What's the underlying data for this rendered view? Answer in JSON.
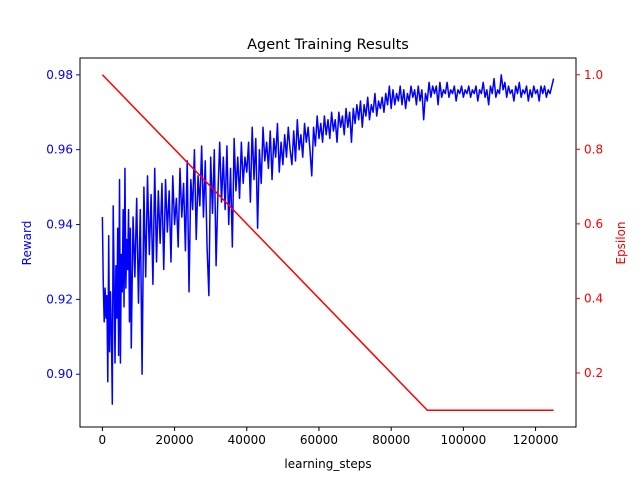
{
  "chart_data": {
    "type": "line",
    "title": "Agent Training Results",
    "xlabel": "learning_steps",
    "ylabel_left": "Reward",
    "ylabel_right": "Epsilon",
    "xlim": [
      -6200,
      131200
    ],
    "ylim_left": [
      0.8859,
      0.9845
    ],
    "ylim_right": [
      0.055,
      1.045
    ],
    "x_ticks": [
      0,
      20000,
      40000,
      60000,
      80000,
      100000,
      120000
    ],
    "y_ticks_left": [
      0.9,
      0.92,
      0.94,
      0.96,
      0.98
    ],
    "y_ticks_right": [
      0.2,
      0.4,
      0.6,
      0.8,
      1.0
    ],
    "grid": false,
    "colors": {
      "reward": "#0000ff",
      "epsilon": "#ff0000",
      "axis": "#000000"
    },
    "series": [
      {
        "name": "Reward",
        "axis": "left",
        "color": "#0000ff",
        "points": [
          [
            0,
            0.942
          ],
          [
            250,
            0.924
          ],
          [
            500,
            0.914
          ],
          [
            750,
            0.923
          ],
          [
            1000,
            0.915
          ],
          [
            1250,
            0.921
          ],
          [
            1500,
            0.898
          ],
          [
            1750,
            0.937
          ],
          [
            2000,
            0.906
          ],
          [
            2250,
            0.922
          ],
          [
            2500,
            0.911
          ],
          [
            2750,
            0.892
          ],
          [
            3000,
            0.945
          ],
          [
            3250,
            0.925
          ],
          [
            3500,
            0.903
          ],
          [
            3750,
            0.929
          ],
          [
            4000,
            0.915
          ],
          [
            4250,
            0.939
          ],
          [
            4500,
            0.905
          ],
          [
            4750,
            0.952
          ],
          [
            5000,
            0.903
          ],
          [
            5250,
            0.932
          ],
          [
            5500,
            0.922
          ],
          [
            5750,
            0.944
          ],
          [
            6000,
            0.918
          ],
          [
            6250,
            0.955
          ],
          [
            6500,
            0.923
          ],
          [
            6750,
            0.936
          ],
          [
            7000,
            0.928
          ],
          [
            7250,
            0.944
          ],
          [
            7500,
            0.914
          ],
          [
            7750,
            0.939
          ],
          [
            8000,
            0.907
          ],
          [
            8500,
            0.942
          ],
          [
            9000,
            0.926
          ],
          [
            9500,
            0.947
          ],
          [
            10000,
            0.919
          ],
          [
            10500,
            0.944
          ],
          [
            11000,
            0.9
          ],
          [
            11500,
            0.95
          ],
          [
            12000,
            0.926
          ],
          [
            12500,
            0.953
          ],
          [
            13000,
            0.932
          ],
          [
            13500,
            0.948
          ],
          [
            14000,
            0.924
          ],
          [
            14500,
            0.955
          ],
          [
            15000,
            0.93
          ],
          [
            15500,
            0.949
          ],
          [
            16000,
            0.935
          ],
          [
            16500,
            0.951
          ],
          [
            17000,
            0.928
          ],
          [
            17500,
            0.952
          ],
          [
            18000,
            0.938
          ],
          [
            18500,
            0.949
          ],
          [
            19000,
            0.93
          ],
          [
            19500,
            0.953
          ],
          [
            20000,
            0.94
          ],
          [
            20500,
            0.947
          ],
          [
            21000,
            0.934
          ],
          [
            21500,
            0.955
          ],
          [
            22000,
            0.942
          ],
          [
            22500,
            0.951
          ],
          [
            23000,
            0.933
          ],
          [
            23500,
            0.957
          ],
          [
            24000,
            0.922
          ],
          [
            24500,
            0.952
          ],
          [
            25000,
            0.944
          ],
          [
            25500,
            0.96
          ],
          [
            26000,
            0.936
          ],
          [
            26500,
            0.953
          ],
          [
            27000,
            0.945
          ],
          [
            27500,
            0.961
          ],
          [
            28000,
            0.942
          ],
          [
            28500,
            0.957
          ],
          [
            29000,
            0.934
          ],
          [
            29500,
            0.921
          ],
          [
            30000,
            0.958
          ],
          [
            30500,
            0.943
          ],
          [
            31000,
            0.96
          ],
          [
            31500,
            0.929
          ],
          [
            32000,
            0.948
          ],
          [
            32500,
            0.962
          ],
          [
            33000,
            0.946
          ],
          [
            33500,
            0.958
          ],
          [
            34000,
            0.944
          ],
          [
            34500,
            0.961
          ],
          [
            35000,
            0.94
          ],
          [
            35500,
            0.955
          ],
          [
            36000,
            0.934
          ],
          [
            36500,
            0.963
          ],
          [
            37000,
            0.949
          ],
          [
            37500,
            0.958
          ],
          [
            38000,
            0.947
          ],
          [
            38500,
            0.962
          ],
          [
            39000,
            0.951
          ],
          [
            39500,
            0.958
          ],
          [
            40000,
            0.954
          ],
          [
            40500,
            0.962
          ],
          [
            41000,
            0.946
          ],
          [
            41500,
            0.966
          ],
          [
            42000,
            0.952
          ],
          [
            42500,
            0.963
          ],
          [
            43000,
            0.939
          ],
          [
            43500,
            0.96
          ],
          [
            44000,
            0.951
          ],
          [
            44500,
            0.966
          ],
          [
            45000,
            0.957
          ],
          [
            45500,
            0.962
          ],
          [
            46000,
            0.955
          ],
          [
            46500,
            0.965
          ],
          [
            47000,
            0.952
          ],
          [
            47500,
            0.963
          ],
          [
            48000,
            0.958
          ],
          [
            48500,
            0.967
          ],
          [
            49000,
            0.954
          ],
          [
            49500,
            0.962
          ],
          [
            50000,
            0.956
          ],
          [
            50500,
            0.964
          ],
          [
            51000,
            0.958
          ],
          [
            51500,
            0.966
          ],
          [
            52000,
            0.96
          ],
          [
            52500,
            0.956
          ],
          [
            53000,
            0.965
          ],
          [
            53500,
            0.957
          ],
          [
            54000,
            0.968
          ],
          [
            54500,
            0.96
          ],
          [
            55000,
            0.964
          ],
          [
            55500,
            0.958
          ],
          [
            56000,
            0.967
          ],
          [
            56500,
            0.962
          ],
          [
            57000,
            0.966
          ],
          [
            57500,
            0.96
          ],
          [
            58000,
            0.953
          ],
          [
            58500,
            0.966
          ],
          [
            59000,
            0.961
          ],
          [
            59500,
            0.969
          ],
          [
            60000,
            0.963
          ],
          [
            60500,
            0.967
          ],
          [
            61000,
            0.962
          ],
          [
            61500,
            0.969
          ],
          [
            62000,
            0.964
          ],
          [
            62500,
            0.968
          ],
          [
            63000,
            0.963
          ],
          [
            63500,
            0.97
          ],
          [
            64000,
            0.965
          ],
          [
            64500,
            0.968
          ],
          [
            65000,
            0.962
          ],
          [
            65500,
            0.97
          ],
          [
            66000,
            0.966
          ],
          [
            66500,
            0.969
          ],
          [
            67000,
            0.964
          ],
          [
            67500,
            0.971
          ],
          [
            68000,
            0.966
          ],
          [
            68500,
            0.97
          ],
          [
            69000,
            0.962
          ],
          [
            69500,
            0.971
          ],
          [
            70000,
            0.967
          ],
          [
            70500,
            0.972
          ],
          [
            71000,
            0.968
          ],
          [
            71500,
            0.973
          ],
          [
            72000,
            0.966
          ],
          [
            72500,
            0.972
          ],
          [
            73000,
            0.969
          ],
          [
            73500,
            0.974
          ],
          [
            74000,
            0.968
          ],
          [
            74500,
            0.972
          ],
          [
            75000,
            0.97
          ],
          [
            75500,
            0.975
          ],
          [
            76000,
            0.969
          ],
          [
            76500,
            0.973
          ],
          [
            77000,
            0.971
          ],
          [
            77500,
            0.974
          ],
          [
            78000,
            0.97
          ],
          [
            78500,
            0.975
          ],
          [
            79000,
            0.972
          ],
          [
            79500,
            0.977
          ],
          [
            80000,
            0.971
          ],
          [
            80500,
            0.976
          ],
          [
            81000,
            0.972
          ],
          [
            81500,
            0.975
          ],
          [
            82000,
            0.973
          ],
          [
            82500,
            0.977
          ],
          [
            83000,
            0.972
          ],
          [
            83500,
            0.976
          ],
          [
            84000,
            0.971
          ],
          [
            84500,
            0.975
          ],
          [
            85000,
            0.973
          ],
          [
            85500,
            0.977
          ],
          [
            86000,
            0.974
          ],
          [
            86500,
            0.976
          ],
          [
            87000,
            0.972
          ],
          [
            87500,
            0.977
          ],
          [
            88000,
            0.973
          ],
          [
            88500,
            0.976
          ],
          [
            89000,
            0.968
          ],
          [
            89500,
            0.975
          ],
          [
            90000,
            0.973
          ],
          [
            90500,
            0.978
          ],
          [
            91000,
            0.974
          ],
          [
            91500,
            0.977
          ],
          [
            92000,
            0.975
          ],
          [
            92500,
            0.977
          ],
          [
            93000,
            0.972
          ],
          [
            93500,
            0.978
          ],
          [
            94000,
            0.974
          ],
          [
            94500,
            0.976
          ],
          [
            95000,
            0.975
          ],
          [
            95500,
            0.978
          ],
          [
            96000,
            0.974
          ],
          [
            96500,
            0.976
          ],
          [
            97000,
            0.975
          ],
          [
            97500,
            0.977
          ],
          [
            98000,
            0.973
          ],
          [
            98500,
            0.976
          ],
          [
            99000,
            0.975
          ],
          [
            99500,
            0.977
          ],
          [
            100000,
            0.974
          ],
          [
            100500,
            0.976
          ],
          [
            101000,
            0.975
          ],
          [
            101500,
            0.977
          ],
          [
            102000,
            0.974
          ],
          [
            102500,
            0.976
          ],
          [
            103000,
            0.975
          ],
          [
            103500,
            0.977
          ],
          [
            104000,
            0.973
          ],
          [
            104500,
            0.976
          ],
          [
            105000,
            0.975
          ],
          [
            105500,
            0.978
          ],
          [
            106000,
            0.974
          ],
          [
            106500,
            0.976
          ],
          [
            107000,
            0.972
          ],
          [
            107500,
            0.977
          ],
          [
            108000,
            0.975
          ],
          [
            108500,
            0.979
          ],
          [
            109000,
            0.974
          ],
          [
            109500,
            0.976
          ],
          [
            110000,
            0.975
          ],
          [
            110500,
            0.98
          ],
          [
            111000,
            0.976
          ],
          [
            111500,
            0.978
          ],
          [
            112000,
            0.974
          ],
          [
            112500,
            0.977
          ],
          [
            113000,
            0.975
          ],
          [
            113500,
            0.976
          ],
          [
            114000,
            0.973
          ],
          [
            114500,
            0.977
          ],
          [
            115000,
            0.975
          ],
          [
            115500,
            0.978
          ],
          [
            116000,
            0.974
          ],
          [
            116500,
            0.976
          ],
          [
            117000,
            0.975
          ],
          [
            117500,
            0.977
          ],
          [
            118000,
            0.973
          ],
          [
            118500,
            0.976
          ],
          [
            119000,
            0.974
          ],
          [
            119500,
            0.977
          ],
          [
            120000,
            0.975
          ],
          [
            120500,
            0.976
          ],
          [
            121000,
            0.973
          ],
          [
            121500,
            0.977
          ],
          [
            122000,
            0.975
          ],
          [
            122500,
            0.977
          ],
          [
            123000,
            0.974
          ],
          [
            123500,
            0.976
          ],
          [
            124000,
            0.975
          ],
          [
            124500,
            0.977
          ],
          [
            125000,
            0.979
          ]
        ]
      },
      {
        "name": "Epsilon",
        "axis": "right",
        "color": "#ff0000",
        "points": [
          [
            0,
            1.0
          ],
          [
            90000,
            0.1
          ],
          [
            125000,
            0.1
          ]
        ]
      }
    ]
  }
}
